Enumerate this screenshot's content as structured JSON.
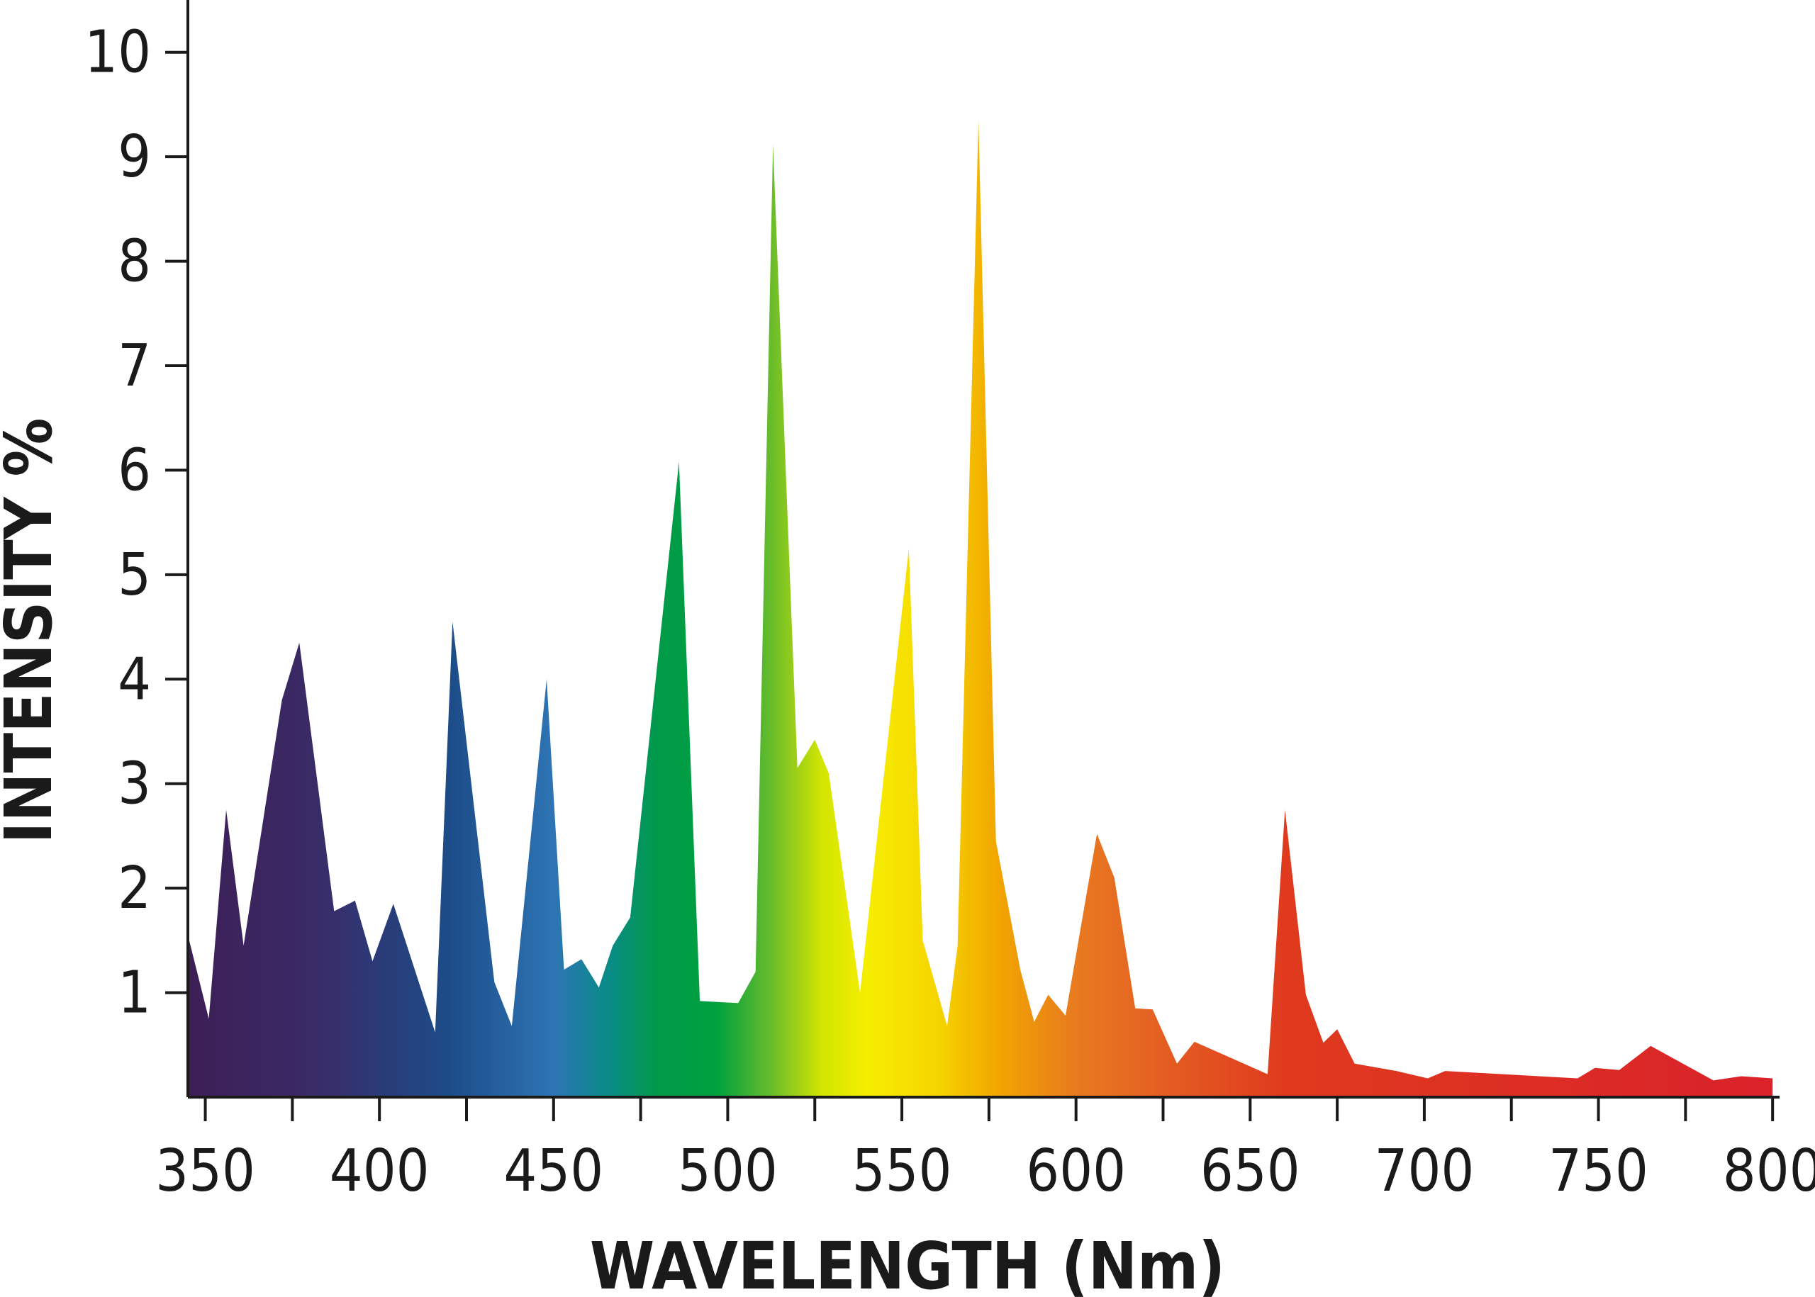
{
  "chart_data": {
    "type": "area",
    "title": "",
    "xlabel": "WAVELENGTH (Nm)",
    "ylabel": "INTENSITY %",
    "xlim": [
      345,
      802
    ],
    "ylim": [
      0,
      10.5
    ],
    "grid": false,
    "legend": "none",
    "x_ticks": [
      350,
      400,
      450,
      500,
      550,
      600,
      650,
      700,
      750,
      800
    ],
    "x_minor_ticks": [
      375,
      425,
      475,
      525,
      575,
      625,
      675,
      725,
      775
    ],
    "y_ticks": [
      1,
      2,
      3,
      4,
      5,
      6,
      7,
      8,
      9,
      10
    ],
    "series": [
      {
        "x": [
          345,
          351,
          356,
          361,
          372,
          377,
          387,
          393,
          398,
          404,
          416,
          421,
          433,
          438,
          448,
          453,
          458,
          463,
          467,
          472,
          486,
          492,
          503,
          508,
          513,
          520,
          525,
          529,
          538,
          552,
          556,
          563,
          566,
          572,
          577,
          584,
          588,
          592,
          597,
          606,
          611,
          617,
          622,
          629,
          634,
          655,
          660,
          666,
          671,
          675,
          680,
          692,
          701,
          706,
          744,
          749,
          756,
          765,
          783,
          791,
          800
        ],
        "y": [
          1.55,
          0.75,
          2.75,
          1.45,
          3.8,
          4.35,
          1.78,
          1.88,
          1.3,
          1.85,
          0.62,
          4.55,
          1.1,
          0.68,
          4.0,
          1.22,
          1.32,
          1.05,
          1.45,
          1.72,
          6.08,
          0.92,
          0.9,
          1.2,
          9.12,
          3.15,
          3.42,
          3.1,
          1.0,
          5.25,
          1.5,
          0.68,
          1.45,
          9.35,
          2.45,
          1.22,
          0.72,
          0.98,
          0.78,
          2.52,
          2.1,
          0.85,
          0.84,
          0.32,
          0.53,
          0.22,
          2.75,
          0.98,
          0.52,
          0.65,
          0.32,
          0.25,
          0.18,
          0.25,
          0.18,
          0.28,
          0.26,
          0.49,
          0.16,
          0.2,
          0.18
        ]
      }
    ],
    "gradient_stops": [
      {
        "nm": 345,
        "color": "#3d1f55"
      },
      {
        "nm": 380,
        "color": "#3a2a66"
      },
      {
        "nm": 420,
        "color": "#1c4c88"
      },
      {
        "nm": 450,
        "color": "#2e74b4"
      },
      {
        "nm": 465,
        "color": "#0a8a8a"
      },
      {
        "nm": 480,
        "color": "#009a48"
      },
      {
        "nm": 497,
        "color": "#00a140"
      },
      {
        "nm": 513,
        "color": "#6cbd2a"
      },
      {
        "nm": 527,
        "color": "#d2e500"
      },
      {
        "nm": 540,
        "color": "#f6ee00"
      },
      {
        "nm": 560,
        "color": "#f6d500"
      },
      {
        "nm": 578,
        "color": "#f1a500"
      },
      {
        "nm": 600,
        "color": "#e87a20"
      },
      {
        "nm": 625,
        "color": "#e45e22"
      },
      {
        "nm": 660,
        "color": "#df3a1e"
      },
      {
        "nm": 802,
        "color": "#d9212a"
      }
    ]
  }
}
